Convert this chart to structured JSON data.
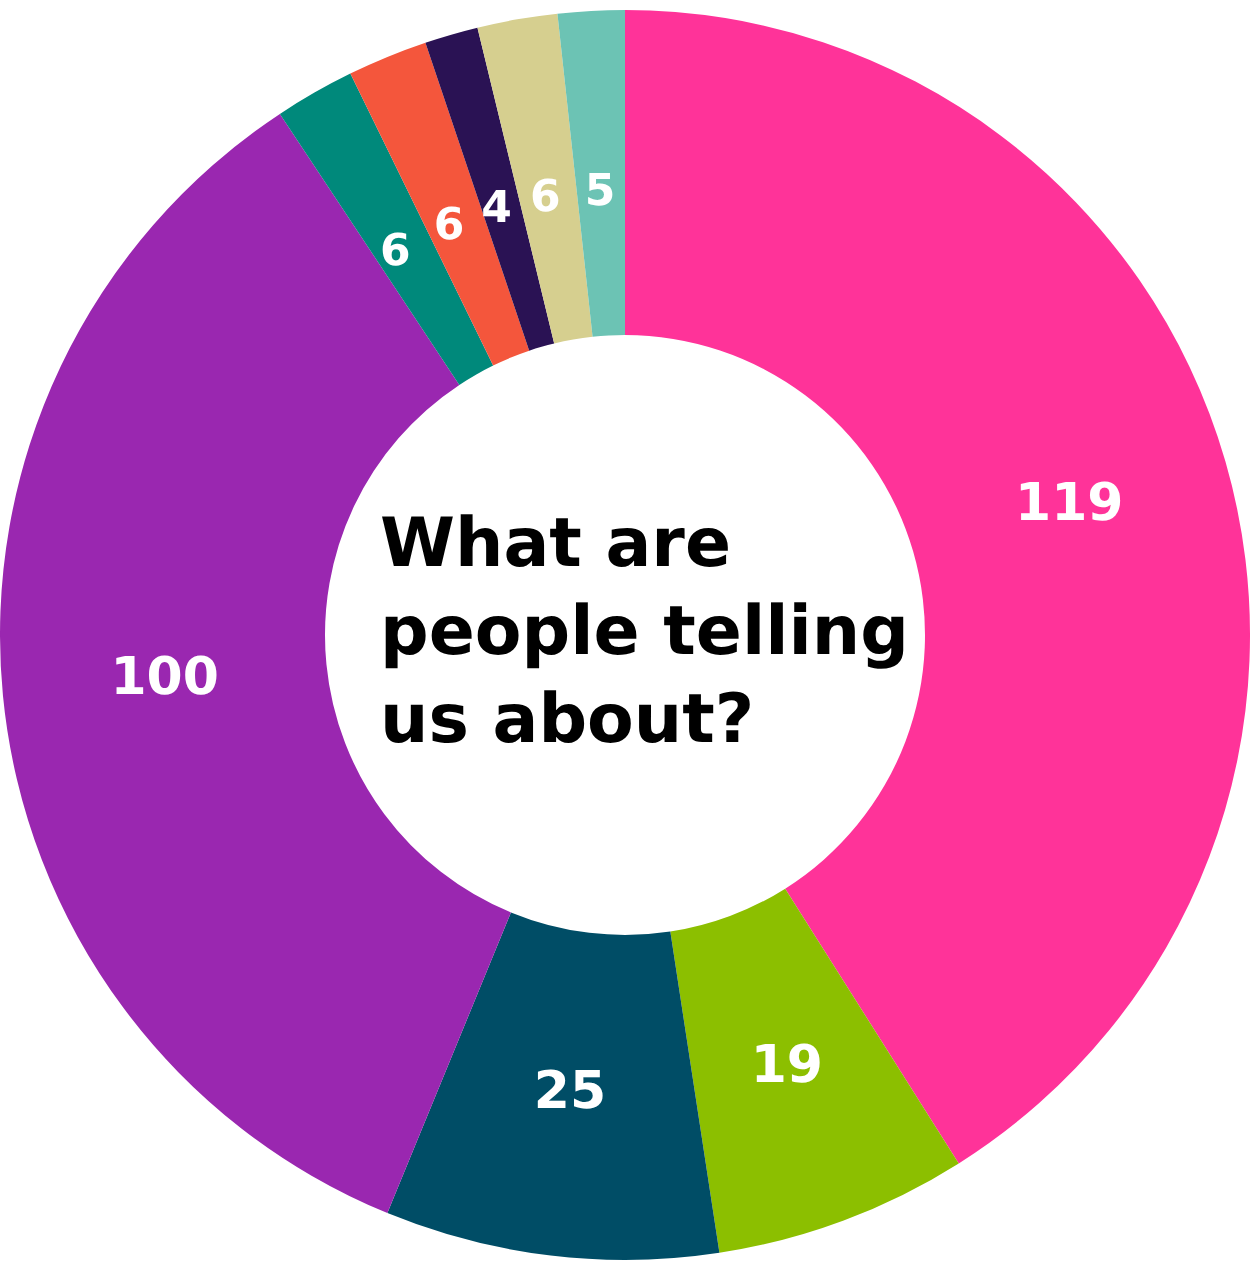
{
  "chart_data": {
    "type": "donut",
    "title": "What are people telling us about?",
    "categories": [
      null,
      null,
      null,
      null,
      null,
      null,
      null,
      null,
      null
    ],
    "values": [
      119,
      19,
      25,
      100,
      6,
      6,
      4,
      6,
      5
    ],
    "colors": [
      "#ff3399",
      "#8cbf00",
      "#004d66",
      "#9a27b0",
      "#00897b",
      "#f4563c",
      "#2a1254",
      "#d6cf8f",
      "#6cc3b4"
    ],
    "data_labels": true,
    "legend": false
  }
}
